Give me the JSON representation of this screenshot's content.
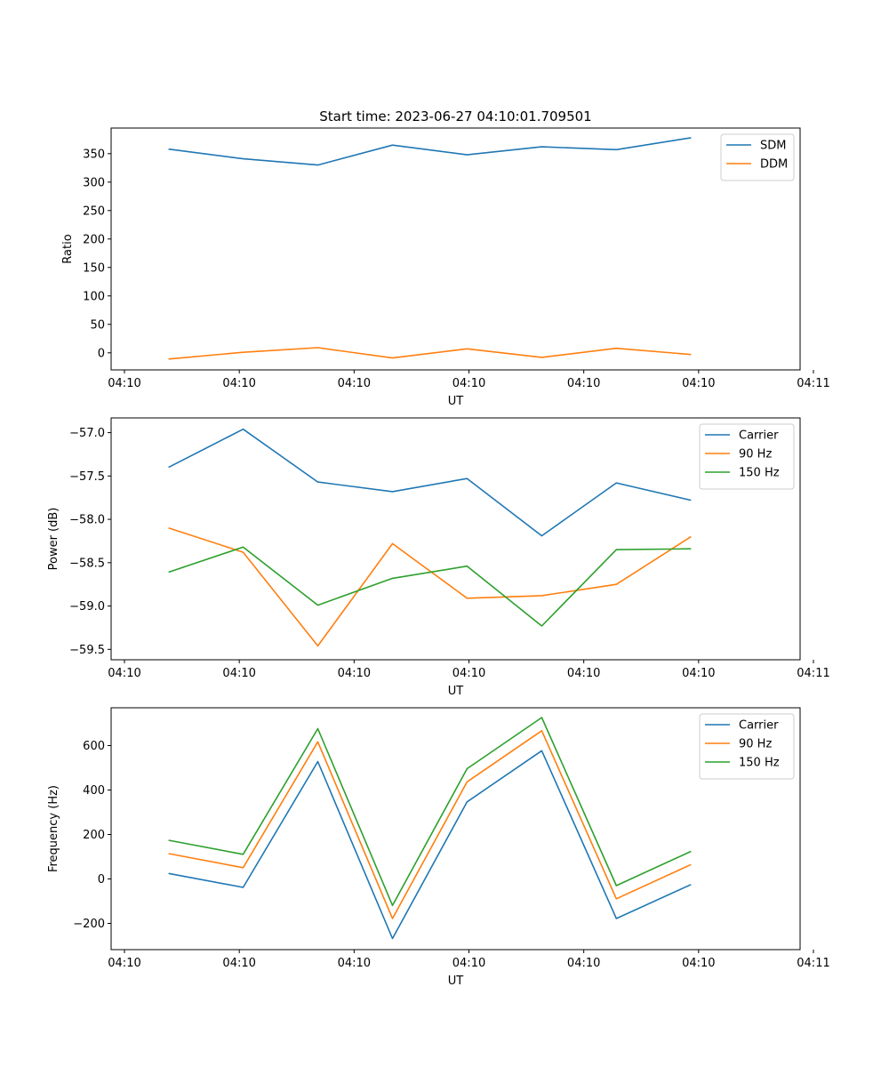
{
  "figure_title": "Start time: 2023-06-27 04:10:01.709501",
  "x_tick_labels": [
    "04:10",
    "04:10",
    "04:10",
    "04:10",
    "04:10",
    "04:10",
    "04:11"
  ],
  "colors": {
    "blue": "#1f77b4",
    "orange": "#ff7f0e",
    "green": "#2ca02c"
  },
  "chart_data": [
    {
      "type": "line",
      "xlabel": "UT",
      "ylabel": "Ratio",
      "xlim": [
        0,
        12
      ],
      "ylim": [
        -30,
        395
      ],
      "yticks": [
        0,
        50,
        100,
        150,
        200,
        250,
        300,
        350
      ],
      "ytick_labels": [
        "0",
        "50",
        "100",
        "150",
        "200",
        "250",
        "300",
        "350"
      ],
      "legend_position": "upper right",
      "x": [
        1,
        2.3,
        3.6,
        4.9,
        6.2,
        7.5,
        8.8,
        10.1
      ],
      "series": [
        {
          "name": "SDM",
          "color": "#1f77b4",
          "values": [
            358,
            341,
            330,
            365,
            348,
            362,
            357,
            378
          ]
        },
        {
          "name": "DDM",
          "color": "#ff7f0e",
          "values": [
            -11,
            1,
            9,
            -9,
            7,
            -8,
            8,
            -3
          ]
        }
      ]
    },
    {
      "type": "line",
      "xlabel": "UT",
      "ylabel": "Power (dB)",
      "xlim": [
        0,
        12
      ],
      "ylim": [
        -59.62,
        -56.83
      ],
      "yticks": [
        -59.5,
        -59.0,
        -58.5,
        -58.0,
        -57.5,
        -57.0
      ],
      "ytick_labels": [
        "−59.5",
        "−59.0",
        "−58.5",
        "−58.0",
        "−57.5",
        "−57.0"
      ],
      "legend_position": "upper right",
      "x": [
        1,
        2.3,
        3.6,
        4.9,
        6.2,
        7.5,
        8.8,
        10.1
      ],
      "series": [
        {
          "name": "Carrier",
          "color": "#1f77b4",
          "values": [
            -57.4,
            -56.96,
            -57.57,
            -57.68,
            -57.53,
            -58.19,
            -57.58,
            -57.78
          ]
        },
        {
          "name": "90 Hz",
          "color": "#ff7f0e",
          "values": [
            -58.1,
            -58.38,
            -59.46,
            -58.28,
            -58.91,
            -58.88,
            -58.75,
            -58.2
          ]
        },
        {
          "name": "150 Hz",
          "color": "#2ca02c",
          "values": [
            -58.61,
            -58.32,
            -58.99,
            -58.68,
            -58.54,
            -59.23,
            -58.35,
            -58.34
          ]
        }
      ]
    },
    {
      "type": "line",
      "xlabel": "UT",
      "ylabel": "Frequency (Hz)",
      "xlim": [
        0,
        12
      ],
      "ylim": [
        -318,
        770
      ],
      "yticks": [
        -200,
        0,
        200,
        400,
        600
      ],
      "ytick_labels": [
        "−200",
        "0",
        "200",
        "400",
        "600"
      ],
      "legend_position": "upper right",
      "x": [
        1,
        2.3,
        3.6,
        4.9,
        6.2,
        7.5,
        8.8,
        10.1
      ],
      "series": [
        {
          "name": "Carrier",
          "color": "#1f77b4",
          "values": [
            25,
            -38,
            528,
            -268,
            347,
            577,
            -178,
            -25
          ]
        },
        {
          "name": "90 Hz",
          "color": "#ff7f0e",
          "values": [
            114,
            51,
            617,
            -178,
            437,
            667,
            -89,
            65
          ]
        },
        {
          "name": "150 Hz",
          "color": "#2ca02c",
          "values": [
            174,
            111,
            676,
            -119,
            496,
            726,
            -30,
            124
          ]
        }
      ]
    }
  ]
}
